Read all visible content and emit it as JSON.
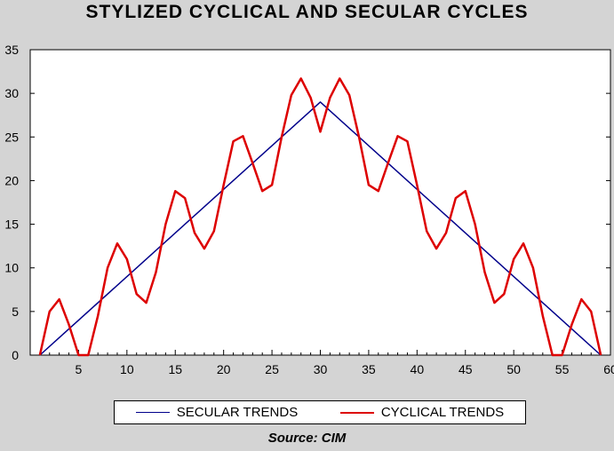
{
  "chart_data": {
    "type": "line",
    "title": "STYLIZED CYCLICAL AND SECULAR CYCLES",
    "xlim": [
      0,
      60
    ],
    "ylim": [
      0,
      35
    ],
    "x_ticks": [
      5,
      10,
      15,
      20,
      25,
      30,
      35,
      40,
      45,
      50,
      55,
      60
    ],
    "y_ticks": [
      0,
      5,
      10,
      15,
      20,
      25,
      30,
      35
    ],
    "grid": false,
    "legend": "bottom",
    "series": [
      {
        "name": "SECULAR TRENDS",
        "color": "#00008b",
        "points": [
          [
            1,
            0
          ],
          [
            30,
            29
          ],
          [
            59,
            0
          ]
        ]
      },
      {
        "name": "CYCLICAL TRENDS",
        "color": "#dd0000",
        "points": [
          [
            1,
            0
          ],
          [
            2,
            5
          ],
          [
            3,
            6.4
          ],
          [
            4,
            3.5
          ],
          [
            5,
            0
          ],
          [
            6,
            0
          ],
          [
            7,
            4.5
          ],
          [
            8,
            10
          ],
          [
            9,
            12.8
          ],
          [
            10,
            11
          ],
          [
            11,
            7
          ],
          [
            12,
            6
          ],
          [
            13,
            9.5
          ],
          [
            14,
            15
          ],
          [
            15,
            18.8
          ],
          [
            16,
            18
          ],
          [
            17,
            14
          ],
          [
            18,
            12.2
          ],
          [
            19,
            14.2
          ],
          [
            20,
            19.5
          ],
          [
            21,
            24.5
          ],
          [
            22,
            25.1
          ],
          [
            23,
            22
          ],
          [
            24,
            18.8
          ],
          [
            25,
            19.5
          ],
          [
            26,
            25
          ],
          [
            27,
            29.8
          ],
          [
            28,
            31.7
          ],
          [
            29,
            29.5
          ],
          [
            30,
            25.6
          ],
          [
            31,
            29.5
          ],
          [
            32,
            31.7
          ],
          [
            33,
            29.8
          ],
          [
            34,
            25
          ],
          [
            35,
            19.5
          ],
          [
            36,
            18.8
          ],
          [
            37,
            22
          ],
          [
            38,
            25.1
          ],
          [
            39,
            24.5
          ],
          [
            40,
            19.5
          ],
          [
            41,
            14.2
          ],
          [
            42,
            12.2
          ],
          [
            43,
            14
          ],
          [
            44,
            18
          ],
          [
            45,
            18.8
          ],
          [
            46,
            15
          ],
          [
            47,
            9.5
          ],
          [
            48,
            6
          ],
          [
            49,
            7
          ],
          [
            50,
            11
          ],
          [
            51,
            12.8
          ],
          [
            52,
            10
          ],
          [
            53,
            4.5
          ],
          [
            54,
            0
          ],
          [
            55,
            0
          ],
          [
            56,
            3.5
          ],
          [
            57,
            6.4
          ],
          [
            58,
            5
          ],
          [
            59,
            0
          ]
        ]
      }
    ],
    "source": "Source:  CIM"
  }
}
